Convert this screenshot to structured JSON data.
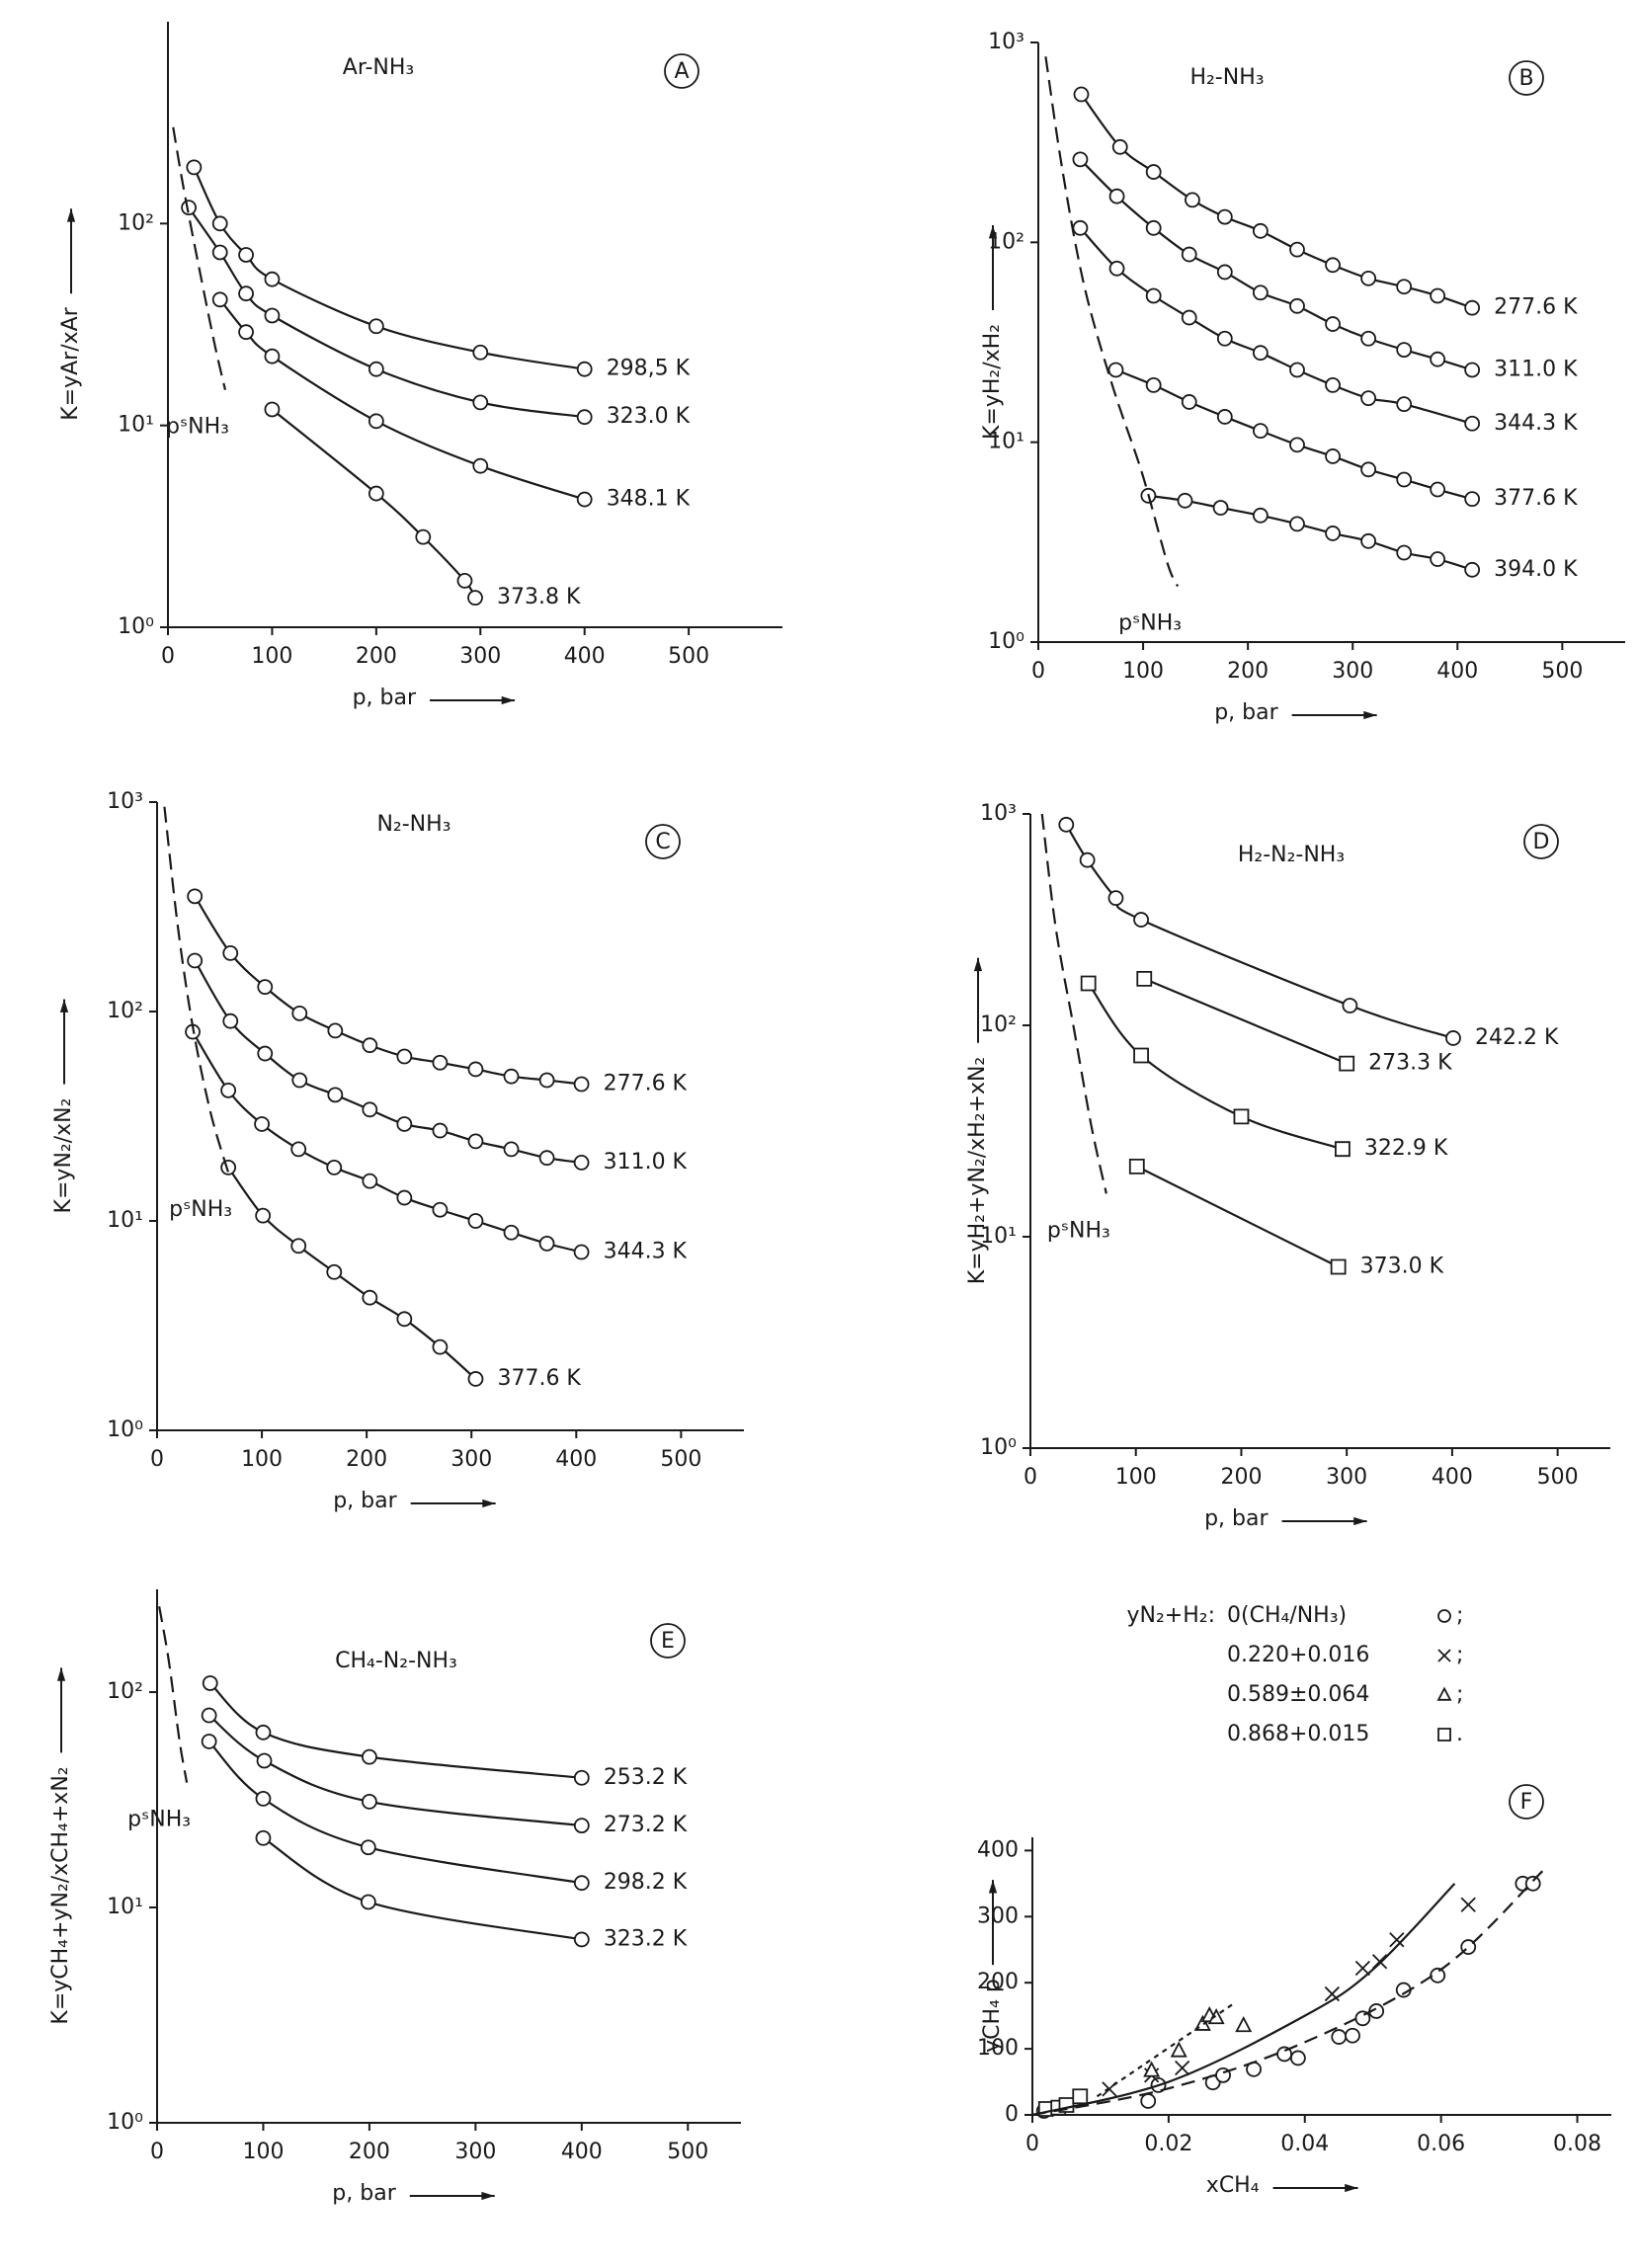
{
  "chart_data": [
    {
      "type": "line",
      "title": "Ar-NH₃",
      "panel": "A",
      "log_y": true,
      "color": "#1a1a1a",
      "xlabel": "p, bar",
      "ylabel": "K=yAr/xAr",
      "xlim": [
        0,
        590
      ],
      "ylim": [
        1,
        1000
      ],
      "xticks": [
        0,
        100,
        200,
        300,
        400,
        500
      ],
      "yticks": [
        {
          "value": 1,
          "label": "10⁰"
        },
        {
          "value": 10,
          "label": "10¹"
        },
        {
          "value": 100,
          "label": "10²"
        }
      ],
      "series": [
        {
          "name": "298,5 K",
          "marker": "circle",
          "x": [
            25,
            50,
            75,
            100,
            200,
            300,
            400
          ],
          "values": [
            190,
            100,
            70,
            53,
            31,
            23,
            19
          ]
        },
        {
          "name": "323.0 K",
          "marker": "circle",
          "x": [
            20,
            50,
            75,
            100,
            200,
            300,
            400
          ],
          "values": [
            120,
            72,
            45,
            35,
            19,
            13,
            11
          ]
        },
        {
          "name": "348.1 K",
          "marker": "circle",
          "x": [
            50,
            75,
            100,
            200,
            300,
            400
          ],
          "values": [
            42,
            29,
            22,
            10.5,
            6.3,
            4.3
          ]
        },
        {
          "name": "373.8 K",
          "marker": "circle",
          "x": [
            100,
            200,
            245,
            285,
            295
          ],
          "values": [
            12,
            4.6,
            2.8,
            1.7,
            1.4
          ]
        },
        {
          "name": "pˢNH₃",
          "dash": "16,8",
          "x": [
            5,
            15,
            30,
            45,
            55
          ],
          "values": [
            300,
            150,
            60,
            25,
            15
          ]
        }
      ]
    },
    {
      "type": "line",
      "title": "H₂-NH₃",
      "panel": "B",
      "log_y": true,
      "color": "#1a1a1a",
      "xlabel": "p, bar",
      "ylabel": "K=yH₂/xH₂",
      "xlim": [
        0,
        560
      ],
      "ylim": [
        1,
        1000
      ],
      "xticks": [
        0,
        100,
        200,
        300,
        400,
        500
      ],
      "yticks": [
        {
          "value": 1,
          "label": "10⁰"
        },
        {
          "value": 10,
          "label": "10¹"
        },
        {
          "value": 100,
          "label": "10²"
        },
        {
          "value": 1000,
          "label": "10³"
        }
      ],
      "series": [
        {
          "name": "277.6 K",
          "marker": "circle",
          "x": [
            41,
            78,
            110,
            147,
            178,
            212,
            247,
            281,
            315,
            349,
            381,
            414
          ],
          "values": [
            550,
            300,
            225,
            163,
            134,
            114,
            92,
            77,
            66,
            60,
            54,
            47
          ]
        },
        {
          "name": "311.0 K",
          "marker": "circle",
          "x": [
            40,
            75,
            110,
            144,
            178,
            212,
            247,
            281,
            315,
            349,
            381,
            414
          ],
          "values": [
            260,
            170,
            118,
            87,
            71,
            56,
            48,
            39,
            33,
            29,
            26,
            23
          ]
        },
        {
          "name": "344.3 K",
          "marker": "circle",
          "x": [
            40,
            75,
            110,
            144,
            178,
            212,
            247,
            281,
            315,
            349,
            414
          ],
          "values": [
            118,
            74,
            54,
            42,
            33,
            28,
            23,
            19.3,
            16.6,
            15.5,
            12.4
          ]
        },
        {
          "name": "377.6 K",
          "marker": "circle",
          "x": [
            74,
            110,
            144,
            178,
            212,
            247,
            281,
            315,
            349,
            381,
            414
          ],
          "values": [
            23,
            19.3,
            15.9,
            13.4,
            11.4,
            9.7,
            8.5,
            7.3,
            6.5,
            5.8,
            5.2
          ]
        },
        {
          "name": "394.0 K",
          "marker": "circle",
          "x": [
            105,
            140,
            174,
            212,
            247,
            281,
            315,
            349,
            381,
            414
          ],
          "values": [
            5.4,
            5.1,
            4.7,
            4.3,
            3.9,
            3.5,
            3.2,
            2.8,
            2.6,
            2.3
          ]
        },
        {
          "name": "pˢNH₃",
          "dash": "16,8",
          "x": [
            7,
            23,
            44,
            71,
            99,
            123,
            133
          ],
          "values": [
            850,
            230,
            60,
            19,
            7,
            2.5,
            1.9
          ]
        }
      ]
    },
    {
      "type": "line",
      "title": "N₂-NH₃",
      "panel": "C",
      "log_y": true,
      "color": "#1a1a1a",
      "xlabel": "p, bar",
      "ylabel": "K=yN₂/xN₂",
      "xlim": [
        0,
        560
      ],
      "ylim": [
        1,
        1000
      ],
      "xticks": [
        0,
        100,
        200,
        300,
        400,
        500
      ],
      "yticks": [
        {
          "value": 1,
          "label": "10⁰"
        },
        {
          "value": 10,
          "label": "10¹"
        },
        {
          "value": 100,
          "label": "10²"
        },
        {
          "value": 1000,
          "label": "10³"
        }
      ],
      "series": [
        {
          "name": "277.6 K",
          "marker": "circle",
          "x": [
            36,
            70,
            103,
            136,
            170,
            203,
            236,
            270,
            304,
            338,
            372,
            405
          ],
          "values": [
            355,
            190,
            131,
            98,
            81,
            69,
            61,
            57,
            53,
            49,
            47,
            45
          ]
        },
        {
          "name": "311.0 K",
          "marker": "circle",
          "x": [
            36,
            70,
            103,
            136,
            170,
            203,
            236,
            270,
            304,
            338,
            372,
            405
          ],
          "values": [
            175,
            90,
            63,
            47,
            40,
            34,
            29,
            27,
            24,
            22,
            20,
            19
          ]
        },
        {
          "name": "344.3 K",
          "marker": "circle",
          "x": [
            34,
            68,
            100,
            135,
            169,
            203,
            236,
            270,
            304,
            338,
            372,
            405
          ],
          "values": [
            80,
            42,
            29,
            22,
            18,
            15.5,
            12.9,
            11.3,
            10,
            8.8,
            7.8,
            7.1
          ]
        },
        {
          "name": "377.6 K",
          "marker": "circle",
          "x": [
            68,
            101,
            135,
            169,
            203,
            236,
            270,
            304
          ],
          "values": [
            18,
            10.6,
            7.6,
            5.7,
            4.3,
            3.4,
            2.5,
            1.76
          ]
        },
        {
          "name": "pˢNH₃",
          "dash": "16,8",
          "x": [
            7,
            20,
            34,
            51,
            68
          ],
          "values": [
            950,
            250,
            85,
            33,
            17
          ]
        }
      ]
    },
    {
      "type": "line",
      "title": "H₂-N₂-NH₃",
      "panel": "D",
      "log_y": true,
      "color": "#1a1a1a",
      "xlabel": "p, bar",
      "ylabel": "K=yH₂+yN₂/xH₂+xN₂",
      "xlim": [
        0,
        550
      ],
      "ylim": [
        1,
        1000
      ],
      "xticks": [
        0,
        100,
        200,
        300,
        400,
        500
      ],
      "yticks": [
        {
          "value": 1,
          "label": "10⁰"
        },
        {
          "value": 10,
          "label": "10¹"
        },
        {
          "value": 100,
          "label": "10²"
        },
        {
          "value": 1000,
          "label": "10³"
        }
      ],
      "series": [
        {
          "name": "242.2 K",
          "marker": "circle",
          "x": [
            34,
            54,
            81,
            105,
            303,
            401
          ],
          "values": [
            890,
            605,
            400,
            316,
            124,
            87
          ]
        },
        {
          "name": "273.3 K",
          "marker": "square",
          "x": [
            108,
            300
          ],
          "values": [
            166,
            66
          ]
        },
        {
          "name": "322.9 K",
          "marker": "square",
          "x": [
            55,
            105,
            200,
            296
          ],
          "values": [
            158,
            72,
            37,
            26
          ]
        },
        {
          "name": "373.0 K",
          "marker": "square",
          "x": [
            101,
            292
          ],
          "values": [
            21.5,
            7.2
          ]
        },
        {
          "name": "pˢNH₃",
          "dash": "16,8",
          "x": [
            11,
            24,
            41,
            58,
            72
          ],
          "values": [
            1000,
            290,
            98,
            33,
            16
          ]
        }
      ]
    },
    {
      "type": "line",
      "title": "CH₄-N₂-NH₃",
      "panel": "E",
      "log_y": true,
      "color": "#1a1a1a",
      "xlabel": "p, bar",
      "ylabel": "K=yCH₄+yN₂/xCH₄+xN₂",
      "xlim": [
        0,
        550
      ],
      "ylim": [
        1,
        300
      ],
      "xticks": [
        0,
        100,
        200,
        300,
        400,
        500
      ],
      "yticks": [
        {
          "value": 1,
          "label": "10⁰"
        },
        {
          "value": 10,
          "label": "10¹"
        },
        {
          "value": 100,
          "label": "10²"
        }
      ],
      "series": [
        {
          "name": "253.2 K",
          "marker": "circle",
          "x": [
            50,
            100,
            200,
            400
          ],
          "values": [
            110,
            65,
            50,
            40
          ]
        },
        {
          "name": "273.2 K",
          "marker": "circle",
          "x": [
            49,
            101,
            200,
            400
          ],
          "values": [
            78,
            48,
            31,
            24
          ]
        },
        {
          "name": "298.2 K",
          "marker": "circle",
          "x": [
            49,
            100,
            199,
            400
          ],
          "values": [
            59,
            32,
            19,
            13
          ]
        },
        {
          "name": "323.2 K",
          "marker": "circle",
          "x": [
            100,
            199,
            400
          ],
          "values": [
            21,
            10.6,
            7.1
          ]
        },
        {
          "name": "pˢNH₃",
          "dash": "16,8",
          "x": [
            2,
            11,
            21,
            28
          ],
          "values": [
            250,
            140,
            60,
            38
          ]
        }
      ]
    },
    {
      "type": "scatter",
      "panel": "F",
      "log_y": false,
      "color": "#1a1a1a",
      "xlabel": "xCH₄",
      "ylabel": "yCH₄ p",
      "legend_title": "yN₂+H₂:",
      "xlim": [
        0,
        0.085
      ],
      "ylim": [
        0,
        420
      ],
      "xticks": [
        0,
        0.02,
        0.04,
        0.06,
        0.08
      ],
      "yticks": [
        0,
        100,
        200,
        300,
        400
      ],
      "series": [
        {
          "name": "0(CH₄/NH₃)",
          "suffix": ";",
          "marker": "circle",
          "line": false,
          "x": [
            0.0017,
            0.017,
            0.0185,
            0.0265,
            0.028,
            0.0325,
            0.037,
            0.039,
            0.045,
            0.047,
            0.0485,
            0.0505,
            0.0545,
            0.0595,
            0.064,
            0.072,
            0.0735
          ],
          "values": [
            6,
            21,
            45,
            49,
            60,
            69,
            92,
            86,
            118,
            120,
            146,
            157,
            189,
            211,
            254,
            350,
            350
          ]
        },
        {
          "name": "0.220+0.016",
          "suffix": ";",
          "marker": "cross",
          "line": false,
          "x": [
            0.0113,
            0.0175,
            0.022,
            0.044,
            0.0485,
            0.051,
            0.0535,
            0.064
          ],
          "values": [
            39,
            60,
            71,
            183,
            222,
            232,
            265,
            318
          ]
        },
        {
          "name": "0.589±0.064",
          "suffix": ";",
          "marker": "triangle",
          "line": false,
          "x": [
            0.0175,
            0.0215,
            0.025,
            0.026,
            0.027,
            0.031
          ],
          "values": [
            67,
            97,
            137,
            150,
            147,
            135
          ]
        },
        {
          "name": "0.868+0.015",
          "suffix": ".",
          "marker": "square",
          "line": false,
          "x": [
            0.002,
            0.0038,
            0.005,
            0.007
          ],
          "values": [
            9,
            11,
            15,
            28
          ]
        },
        {
          "dash": "14,8",
          "x": [
            0,
            0.02,
            0.04,
            0.06,
            0.075
          ],
          "values": [
            0,
            40,
            110,
            220,
            370
          ]
        },
        {
          "x": [
            0,
            0.02,
            0.04,
            0.05,
            0.062
          ],
          "values": [
            0,
            50,
            150,
            220,
            350
          ]
        },
        {
          "dash": "5,5",
          "x": [
            0.0095,
            0.0295
          ],
          "values": [
            28,
            168
          ]
        }
      ]
    }
  ]
}
